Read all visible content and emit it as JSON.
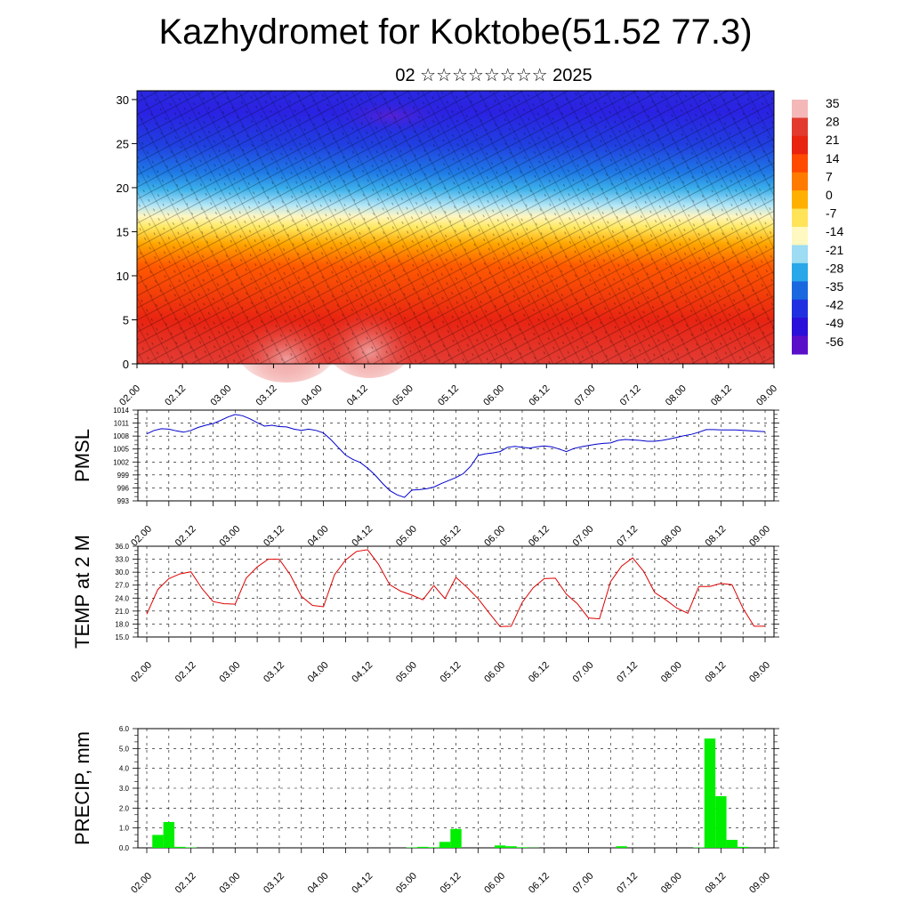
{
  "title": "Kazhydromet for Koktobe(51.52 77.3)",
  "subtitle": "02 ☆☆☆☆☆☆☆☆ 2025",
  "time_ticks": [
    "02.00",
    "02.12",
    "03.00",
    "03.12",
    "04.00",
    "04.12",
    "05.00",
    "05.12",
    "06.00",
    "06.12",
    "07.00",
    "07.12",
    "08.00",
    "08.12",
    "09.00"
  ],
  "chart_data": [
    {
      "type": "heatmap",
      "name": "temperature-wind cross-section",
      "x_ticks": [
        "02.00",
        "02.12",
        "03.00",
        "03.12",
        "04.00",
        "04.12",
        "05.00",
        "05.12",
        "06.00",
        "06.12",
        "07.00",
        "07.12",
        "08.00",
        "08.12",
        "09.00"
      ],
      "y_ticks": [
        0,
        5,
        10,
        15,
        20,
        25,
        30
      ],
      "ylim": [
        0,
        31
      ],
      "colorbar_labels": [
        35,
        28,
        21,
        14,
        7,
        0,
        -7,
        -14,
        -21,
        -28,
        -35,
        -42,
        -49,
        -56
      ],
      "colorbar_colors": [
        "#f4b8b8",
        "#e23a2e",
        "#e8230f",
        "#ff4a00",
        "#ff7a00",
        "#ffb000",
        "#ffe45a",
        "#fff8c0",
        "#9ddcf2",
        "#28a8e8",
        "#1a68e0",
        "#2030e0",
        "#2a10d8",
        "#5a10c8"
      ],
      "overlay": "wind barbs"
    },
    {
      "type": "line",
      "ylabel": "PMSL",
      "yticks": [
        "1014",
        "1011",
        "1008",
        "1005",
        "1002",
        "999",
        "996",
        "993"
      ],
      "ylim": [
        993,
        1014
      ],
      "color": "#0000cc",
      "x": [
        0,
        2,
        4,
        6,
        8,
        10,
        12,
        14,
        16,
        18,
        20,
        22,
        24,
        26,
        28,
        30,
        32,
        34,
        36,
        38,
        40,
        42,
        44,
        46,
        48,
        50,
        52,
        54,
        56,
        58,
        60,
        62,
        64,
        66,
        68,
        70,
        72,
        74,
        76,
        78,
        80,
        82,
        84,
        86,
        88,
        90,
        92,
        94,
        96,
        98,
        100,
        102,
        104,
        106,
        108,
        110,
        112,
        114,
        116,
        118,
        120,
        122,
        124,
        126,
        128,
        130,
        132,
        134,
        136,
        138,
        140,
        142,
        144,
        146,
        148,
        150,
        152,
        154,
        156,
        158,
        160,
        162,
        164,
        166,
        168
      ],
      "values": [
        1008.5,
        1009.3,
        1009.7,
        1009.6,
        1009.2,
        1008.9,
        1009.3,
        1010,
        1010.5,
        1010.9,
        1011.6,
        1012.4,
        1013,
        1012.7,
        1012,
        1011.1,
        1010.3,
        1010.5,
        1010.2,
        1010.1,
        1009.6,
        1009.3,
        1009.6,
        1009.3,
        1008.7,
        1007.2,
        1005.4,
        1003.6,
        1002.6,
        1001.9,
        1000.6,
        999,
        997.1,
        995.4,
        994.4,
        993.8,
        995.5,
        995.6,
        995.8,
        996.2,
        997,
        997.7,
        998.4,
        999.3,
        1001,
        1003.5,
        1003.9,
        1004.1,
        1004.4,
        1005.4,
        1005.6,
        1005.4,
        1005.2,
        1005.5,
        1005.7,
        1005.5,
        1005,
        1004.4,
        1005.1,
        1005.5,
        1005.8,
        1006.1,
        1006.3,
        1006.4,
        1007,
        1007.2,
        1007.1,
        1007,
        1006.8,
        1006.8,
        1007,
        1007.3,
        1007.7,
        1008.1,
        1008.4,
        1008.9,
        1009.5,
        1009.5,
        1009.4,
        1009.4,
        1009.4,
        1009.3,
        1009.2,
        1009.1,
        1009
      ]
    },
    {
      "type": "line",
      "ylabel": "TEMP at 2 M",
      "yticks": [
        "36.0",
        "33.0",
        "30.0",
        "27.0",
        "24.0",
        "21.0",
        "18.0",
        "15.0"
      ],
      "ylim": [
        15,
        36
      ],
      "color": "#dd0000",
      "x": [
        0,
        3,
        6,
        9,
        12,
        15,
        18,
        21,
        24,
        27,
        30,
        33,
        36,
        39,
        42,
        45,
        48,
        51,
        54,
        57,
        60,
        63,
        66,
        69,
        72,
        75,
        78,
        81,
        84,
        87,
        90,
        93,
        96,
        99,
        102,
        105,
        108,
        111,
        114,
        117,
        120,
        123,
        126,
        129,
        132,
        135,
        138,
        141,
        144,
        147,
        150,
        153,
        156,
        159,
        162,
        165,
        168
      ],
      "values": [
        20.3,
        26,
        28.5,
        29.6,
        30.1,
        26.2,
        23.2,
        22.7,
        22.6,
        28.6,
        31.2,
        33,
        33,
        29.4,
        24.4,
        22.3,
        22,
        29.4,
        32.8,
        34.8,
        35.2,
        31.8,
        27.1,
        25.6,
        24.7,
        23.6,
        26.9,
        23.9,
        28.8,
        26.5,
        23.9,
        20.6,
        17.4,
        17.5,
        23,
        26.4,
        28.5,
        28.6,
        24.9,
        22.7,
        19.4,
        19.2,
        27.8,
        31.4,
        33.3,
        30.2,
        25.3,
        23.6,
        21.7,
        20.5,
        26.7,
        26.7,
        27.4,
        27.1,
        21.6,
        17.5,
        17.5
      ]
    },
    {
      "type": "bar",
      "ylabel": "PRECIP, mm",
      "yticks": [
        "6.0",
        "5.0",
        "4.0",
        "3.0",
        "2.0",
        "1.0",
        "0.0"
      ],
      "ylim": [
        0,
        6
      ],
      "color": "#00ee00",
      "x": [
        3,
        6,
        9,
        12,
        72,
        75,
        78,
        81,
        84,
        96,
        99,
        102,
        105,
        129,
        150,
        153,
        156,
        159,
        162
      ],
      "values": [
        0.65,
        1.3,
        0.05,
        0.02,
        0.02,
        0.05,
        0.03,
        0.3,
        0.95,
        0.12,
        0.08,
        0.03,
        0.01,
        0.08,
        0.02,
        5.5,
        2.6,
        0.4,
        0.05
      ]
    }
  ]
}
